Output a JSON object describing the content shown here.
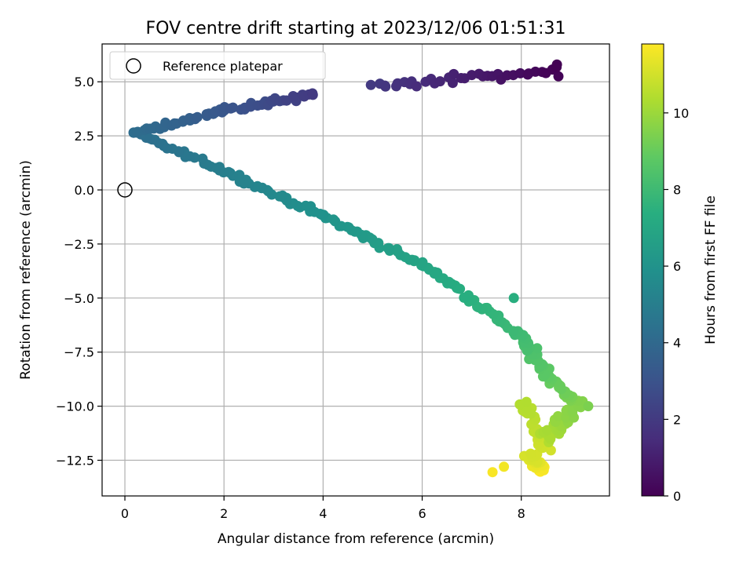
{
  "chart_data": {
    "type": "scatter",
    "title": "FOV centre drift starting at 2023/12/06 01:51:31",
    "xlabel": "Angular distance from reference (arcmin)",
    "ylabel": "Rotation from reference (arcmin)",
    "xlim": [
      -0.46,
      9.78
    ],
    "ylim": [
      -14.15,
      6.75
    ],
    "xticks": [
      0,
      2,
      4,
      6,
      8
    ],
    "yticks": [
      -12.5,
      -10.0,
      -7.5,
      -5.0,
      -2.5,
      0.0,
      2.5,
      5.0
    ],
    "xtick_labels": [
      "0",
      "2",
      "4",
      "6",
      "8"
    ],
    "ytick_labels": [
      "−12.5",
      "−10.0",
      "−7.5",
      "−5.0",
      "−2.5",
      "0.0",
      "2.5",
      "5.0"
    ],
    "grid": true,
    "legend": {
      "placement": "top-left",
      "entries": [
        "Reference platepar"
      ]
    },
    "reference_point": {
      "x": 0,
      "y": 0
    },
    "colorbar": {
      "label": "Hours from first FF file",
      "range": [
        0,
        11.8
      ],
      "ticks": [
        0,
        2,
        4,
        6,
        8,
        10
      ],
      "tick_labels": [
        "0",
        "2",
        "4",
        "6",
        "8",
        "10"
      ],
      "colormap": "viridis"
    },
    "series": [
      {
        "segments": [
          {
            "t0": 0.0,
            "t1": 2.0,
            "x0": 8.7,
            "y0": 5.5,
            "x1": 5.0,
            "y1": 4.8,
            "n": 36,
            "sx": 0.18,
            "sy": 0.32
          },
          {
            "t0": 2.0,
            "t1": 3.2,
            "x0": 3.8,
            "y0": 4.4,
            "x1": 2.0,
            "y1": 3.7,
            "n": 30,
            "sx": 0.15,
            "sy": 0.18
          },
          {
            "t0": 3.2,
            "t1": 4.2,
            "x0": 2.0,
            "y0": 3.7,
            "x1": 0.2,
            "y1": 2.6,
            "n": 30,
            "sx": 0.1,
            "sy": 0.15
          },
          {
            "t0": 4.2,
            "t1": 5.0,
            "x0": 0.2,
            "y0": 2.6,
            "x1": 1.9,
            "y1": 1.0,
            "n": 26,
            "sx": 0.1,
            "sy": 0.15
          },
          {
            "t0": 5.0,
            "t1": 6.0,
            "x0": 1.9,
            "y0": 1.0,
            "x1": 4.0,
            "y1": -1.2,
            "n": 34,
            "sx": 0.1,
            "sy": 0.18
          },
          {
            "t0": 6.0,
            "t1": 7.0,
            "x0": 4.0,
            "y0": -1.2,
            "x1": 6.2,
            "y1": -3.7,
            "n": 36,
            "sx": 0.1,
            "sy": 0.2
          },
          {
            "t0": 7.0,
            "t1": 8.0,
            "x0": 6.2,
            "y0": -3.7,
            "x1": 7.9,
            "y1": -6.6,
            "n": 36,
            "sx": 0.1,
            "sy": 0.25
          },
          {
            "t0": 8.0,
            "t1": 9.0,
            "x0": 7.9,
            "y0": -6.6,
            "x1": 8.7,
            "y1": -9.0,
            "n": 36,
            "sx": 0.15,
            "sy": 0.35
          },
          {
            "t0": 9.0,
            "t1": 9.6,
            "x0": 8.7,
            "y0": -9.0,
            "x1": 9.2,
            "y1": -10.0,
            "n": 20,
            "sx": 0.15,
            "sy": 0.3
          },
          {
            "t0": 9.6,
            "t1": 10.4,
            "x0": 9.0,
            "y0": -10.2,
            "x1": 8.5,
            "y1": -11.5,
            "n": 36,
            "sx": 0.25,
            "sy": 0.4
          },
          {
            "t0": 10.4,
            "t1": 11.0,
            "x0": 8.1,
            "y0": -10.0,
            "x1": 8.5,
            "y1": -12.0,
            "n": 30,
            "sx": 0.18,
            "sy": 0.45
          },
          {
            "t0": 11.0,
            "t1": 11.8,
            "x0": 8.2,
            "y0": -12.3,
            "x1": 8.4,
            "y1": -13.0,
            "n": 40,
            "sx": 0.2,
            "sy": 0.2
          }
        ],
        "outliers": [
          {
            "x": 7.42,
            "y": -13.05,
            "t": 11.7
          },
          {
            "x": 7.65,
            "y": -12.8,
            "t": 11.6
          },
          {
            "x": 8.72,
            "y": 5.8,
            "t": 0.05
          },
          {
            "x": 8.75,
            "y": 5.25,
            "t": 0.1
          },
          {
            "x": 7.85,
            "y": -5.0,
            "t": 7.4
          },
          {
            "x": 9.35,
            "y": -10.0,
            "t": 9.4
          }
        ]
      }
    ]
  }
}
